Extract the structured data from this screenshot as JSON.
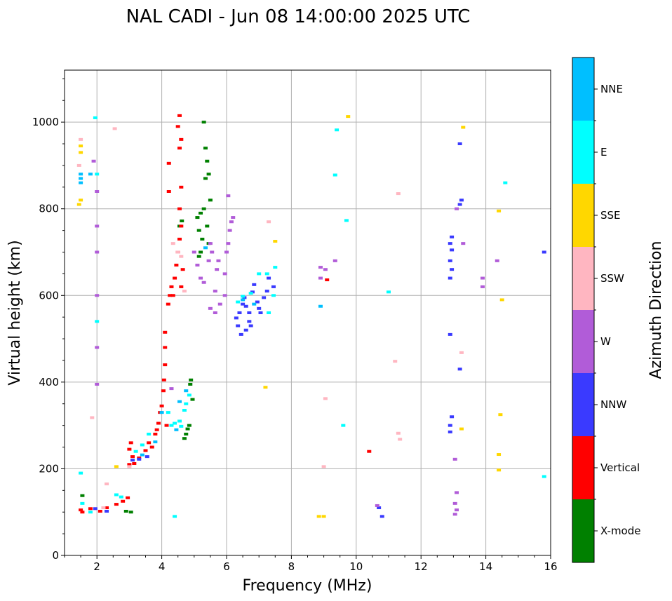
{
  "chart_data": {
    "type": "scatter",
    "title": "NAL CADI - Jun 08 14:00:00 2025 UTC",
    "xlabel": "Frequency (MHz)",
    "ylabel": "Virtual height (km)",
    "xlim": [
      1,
      16
    ],
    "ylim": [
      0,
      1120
    ],
    "xticks": [
      2,
      4,
      6,
      8,
      10,
      12,
      14,
      16
    ],
    "yticks": [
      0,
      200,
      400,
      600,
      800,
      1000
    ],
    "grid": true,
    "colorbar": {
      "label": "Azimuth Direction",
      "categories": [
        {
          "name": "X-mode",
          "color": "#008000"
        },
        {
          "name": "Vertical",
          "color": "#ff0000"
        },
        {
          "name": "NNW",
          "color": "#3a3aff"
        },
        {
          "name": "W",
          "color": "#b15cd8"
        },
        {
          "name": "SSW",
          "color": "#ffb6c1"
        },
        {
          "name": "SSE",
          "color": "#ffd700"
        },
        {
          "name": "E",
          "color": "#00ffff"
        },
        {
          "name": "NNE",
          "color": "#00bfff"
        }
      ]
    },
    "series": [
      {
        "name": "X-mode",
        "points": [
          [
            1.55,
            138
          ],
          [
            2.9,
            102
          ],
          [
            3.05,
            100
          ],
          [
            4.55,
            760
          ],
          [
            4.62,
            772
          ],
          [
            4.7,
            270
          ],
          [
            4.75,
            280
          ],
          [
            4.8,
            292
          ],
          [
            4.85,
            300
          ],
          [
            4.88,
            395
          ],
          [
            4.9,
            405
          ],
          [
            4.95,
            360
          ],
          [
            5.1,
            780
          ],
          [
            5.15,
            750
          ],
          [
            5.2,
            790
          ],
          [
            5.25,
            730
          ],
          [
            5.3,
            800
          ],
          [
            5.35,
            870
          ],
          [
            5.4,
            910
          ],
          [
            5.45,
            880
          ],
          [
            5.5,
            820
          ],
          [
            5.3,
            1000
          ],
          [
            5.35,
            940
          ],
          [
            5.15,
            690
          ],
          [
            5.2,
            700
          ],
          [
            5.4,
            760
          ],
          [
            5.45,
            720
          ]
        ]
      },
      {
        "name": "Vertical",
        "points": [
          [
            1.5,
            105
          ],
          [
            1.55,
            100
          ],
          [
            1.8,
            108
          ],
          [
            2.1,
            102
          ],
          [
            2.3,
            110
          ],
          [
            2.6,
            118
          ],
          [
            2.8,
            125
          ],
          [
            2.95,
            133
          ],
          [
            3.0,
            210
          ],
          [
            3.0,
            245
          ],
          [
            3.05,
            260
          ],
          [
            3.1,
            228
          ],
          [
            3.15,
            212
          ],
          [
            3.3,
            225
          ],
          [
            3.5,
            242
          ],
          [
            3.6,
            260
          ],
          [
            3.7,
            250
          ],
          [
            3.8,
            280
          ],
          [
            3.85,
            290
          ],
          [
            3.9,
            305
          ],
          [
            3.95,
            330
          ],
          [
            4.0,
            345
          ],
          [
            4.05,
            380
          ],
          [
            4.07,
            405
          ],
          [
            4.1,
            440
          ],
          [
            4.1,
            480
          ],
          [
            4.1,
            515
          ],
          [
            4.15,
            300
          ],
          [
            4.2,
            580
          ],
          [
            4.25,
            600
          ],
          [
            4.3,
            620
          ],
          [
            4.4,
            640
          ],
          [
            4.45,
            670
          ],
          [
            4.5,
            700
          ],
          [
            4.55,
            730
          ],
          [
            4.6,
            760
          ],
          [
            4.55,
            800
          ],
          [
            4.6,
            850
          ],
          [
            4.6,
            960
          ],
          [
            4.55,
            1015
          ],
          [
            4.5,
            990
          ],
          [
            4.55,
            940
          ],
          [
            4.22,
            905
          ],
          [
            4.22,
            840
          ],
          [
            4.35,
            600
          ],
          [
            4.6,
            620
          ],
          [
            4.65,
            660
          ],
          [
            10.4,
            240
          ],
          [
            9.1,
            636
          ]
        ]
      },
      {
        "name": "NNW",
        "points": [
          [
            1.95,
            108
          ],
          [
            2.3,
            102
          ],
          [
            3.1,
            220
          ],
          [
            3.3,
            222
          ],
          [
            3.55,
            228
          ],
          [
            6.3,
            548
          ],
          [
            6.4,
            560
          ],
          [
            6.5,
            580
          ],
          [
            6.55,
            595
          ],
          [
            6.6,
            575
          ],
          [
            6.7,
            560
          ],
          [
            6.75,
            530
          ],
          [
            6.8,
            608
          ],
          [
            6.85,
            625
          ],
          [
            6.95,
            585
          ],
          [
            7.0,
            570
          ],
          [
            7.05,
            560
          ],
          [
            7.15,
            595
          ],
          [
            7.25,
            610
          ],
          [
            7.3,
            640
          ],
          [
            7.45,
            620
          ],
          [
            6.35,
            530
          ],
          [
            6.45,
            510
          ],
          [
            6.6,
            520
          ],
          [
            6.7,
            540
          ],
          [
            12.9,
            640
          ],
          [
            12.95,
            660
          ],
          [
            12.9,
            680
          ],
          [
            12.95,
            705
          ],
          [
            12.9,
            720
          ],
          [
            12.95,
            735
          ],
          [
            12.9,
            300
          ],
          [
            12.95,
            320
          ],
          [
            12.9,
            285
          ],
          [
            13.2,
            430
          ],
          [
            12.9,
            510
          ],
          [
            13.2,
            950
          ],
          [
            13.25,
            820
          ],
          [
            13.2,
            810
          ],
          [
            10.7,
            110
          ],
          [
            10.8,
            90
          ],
          [
            15.8,
            700
          ]
        ]
      },
      {
        "name": "W",
        "points": [
          [
            2.0,
            840
          ],
          [
            2.0,
            760
          ],
          [
            2.0,
            700
          ],
          [
            2.0,
            600
          ],
          [
            2.0,
            480
          ],
          [
            2.0,
            395
          ],
          [
            1.9,
            910
          ],
          [
            4.3,
            385
          ],
          [
            5.0,
            700
          ],
          [
            5.1,
            670
          ],
          [
            5.2,
            640
          ],
          [
            5.3,
            630
          ],
          [
            5.45,
            680
          ],
          [
            5.5,
            720
          ],
          [
            5.55,
            700
          ],
          [
            5.65,
            610
          ],
          [
            5.7,
            660
          ],
          [
            5.75,
            680
          ],
          [
            5.8,
            580
          ],
          [
            5.95,
            650
          ],
          [
            5.95,
            600
          ],
          [
            6.0,
            700
          ],
          [
            6.05,
            720
          ],
          [
            6.1,
            750
          ],
          [
            6.15,
            770
          ],
          [
            6.2,
            780
          ],
          [
            6.05,
            830
          ],
          [
            5.5,
            570
          ],
          [
            5.65,
            560
          ],
          [
            8.9,
            665
          ],
          [
            9.05,
            660
          ],
          [
            8.9,
            640
          ],
          [
            9.35,
            680
          ],
          [
            13.3,
            720
          ],
          [
            13.1,
            800
          ],
          [
            13.9,
            640
          ],
          [
            14.35,
            680
          ],
          [
            13.05,
            222
          ],
          [
            13.1,
            145
          ],
          [
            13.05,
            120
          ],
          [
            13.1,
            105
          ],
          [
            13.05,
            95
          ],
          [
            10.65,
            115
          ],
          [
            13.9,
            620
          ]
        ]
      },
      {
        "name": "SSW",
        "points": [
          [
            1.5,
            960
          ],
          [
            1.45,
            900
          ],
          [
            1.85,
            318
          ],
          [
            2.2,
            110
          ],
          [
            2.3,
            165
          ],
          [
            2.55,
            985
          ],
          [
            3.0,
            205
          ],
          [
            4.5,
            700
          ],
          [
            4.6,
            690
          ],
          [
            4.7,
            610
          ],
          [
            4.35,
            720
          ],
          [
            7.3,
            770
          ],
          [
            9.05,
            362
          ],
          [
            9.0,
            205
          ],
          [
            11.2,
            448
          ],
          [
            11.3,
            835
          ],
          [
            11.3,
            282
          ],
          [
            11.35,
            268
          ],
          [
            13.25,
            468
          ]
        ]
      },
      {
        "name": "SSE",
        "points": [
          [
            1.5,
            945
          ],
          [
            1.5,
            930
          ],
          [
            1.45,
            810
          ],
          [
            1.5,
            820
          ],
          [
            2.6,
            205
          ],
          [
            7.2,
            388
          ],
          [
            7.5,
            725
          ],
          [
            8.85,
            90
          ],
          [
            9.0,
            90
          ],
          [
            9.75,
            1013
          ],
          [
            13.25,
            292
          ],
          [
            13.3,
            988
          ],
          [
            14.4,
            795
          ],
          [
            14.45,
            325
          ],
          [
            14.5,
            590
          ],
          [
            14.4,
            233
          ],
          [
            14.4,
            197
          ]
        ]
      },
      {
        "name": "E",
        "points": [
          [
            1.5,
            190
          ],
          [
            1.55,
            120
          ],
          [
            1.8,
            100
          ],
          [
            2.0,
            880
          ],
          [
            2.0,
            540
          ],
          [
            2.6,
            140
          ],
          [
            2.75,
            135
          ],
          [
            3.2,
            240
          ],
          [
            3.4,
            255
          ],
          [
            3.6,
            280
          ],
          [
            4.2,
            330
          ],
          [
            4.3,
            300
          ],
          [
            4.4,
            305
          ],
          [
            4.55,
            310
          ],
          [
            4.6,
            298
          ],
          [
            4.7,
            335
          ],
          [
            4.75,
            350
          ],
          [
            4.85,
            370
          ],
          [
            6.35,
            585
          ],
          [
            6.5,
            598
          ],
          [
            6.75,
            605
          ],
          [
            7.0,
            650
          ],
          [
            7.25,
            650
          ],
          [
            7.45,
            600
          ],
          [
            7.5,
            665
          ],
          [
            9.4,
            982
          ],
          [
            9.35,
            878
          ],
          [
            9.6,
            300
          ],
          [
            9.7,
            773
          ],
          [
            11.0,
            608
          ],
          [
            14.6,
            860
          ],
          [
            15.8,
            182
          ],
          [
            4.4,
            90
          ],
          [
            1.95,
            1010
          ],
          [
            7.3,
            560
          ]
        ]
      },
      {
        "name": "NNE",
        "points": [
          [
            1.5,
            860
          ],
          [
            1.5,
            870
          ],
          [
            1.5,
            880
          ],
          [
            1.8,
            880
          ],
          [
            3.4,
            232
          ],
          [
            3.8,
            262
          ],
          [
            4.0,
            330
          ],
          [
            4.45,
            290
          ],
          [
            4.55,
            355
          ],
          [
            4.75,
            380
          ],
          [
            5.35,
            710
          ],
          [
            6.5,
            590
          ],
          [
            6.85,
            580
          ],
          [
            8.9,
            575
          ]
        ]
      }
    ]
  }
}
